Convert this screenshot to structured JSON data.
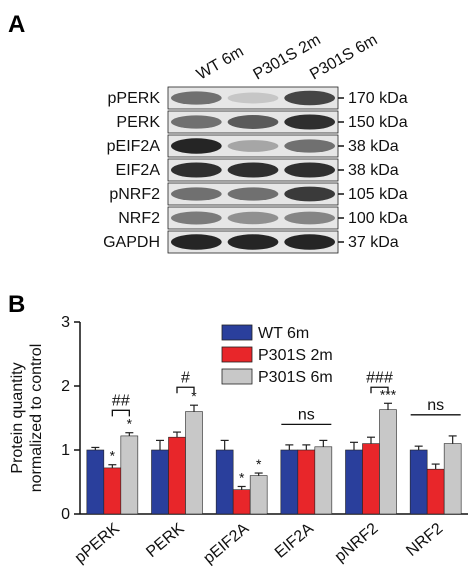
{
  "panel_a": {
    "letter": "A",
    "lanes": [
      "WT 6m",
      "P301S 2m",
      "P301S 6m"
    ],
    "rows": [
      {
        "protein": "pPERK",
        "size": "170 kDa",
        "bands": [
          0.55,
          0.15,
          0.75
        ]
      },
      {
        "protein": "PERK",
        "size": "150 kDa",
        "bands": [
          0.55,
          0.65,
          0.85
        ]
      },
      {
        "protein": "pEIF2A",
        "size": "38 kDa",
        "bands": [
          0.9,
          0.3,
          0.55
        ]
      },
      {
        "protein": "EIF2A",
        "size": "38 kDa",
        "bands": [
          0.85,
          0.85,
          0.85
        ]
      },
      {
        "protein": "pNRF2",
        "size": "105 kDa",
        "bands": [
          0.55,
          0.55,
          0.8
        ]
      },
      {
        "protein": "NRF2",
        "size": "100 kDa",
        "bands": [
          0.5,
          0.4,
          0.45
        ]
      },
      {
        "protein": "GAPDH",
        "size": "37 kDa",
        "bands": [
          0.9,
          0.9,
          0.9
        ]
      }
    ]
  },
  "panel_b": {
    "letter": "B",
    "chart_data": {
      "type": "bar",
      "ylabel_line1": "Protein quantity",
      "ylabel_line2": "normalized to control",
      "ylim": [
        0,
        3
      ],
      "yticks": [
        "0",
        "1",
        "2",
        "3"
      ],
      "categories": [
        "pPERK",
        "PERK",
        "pEIF2A",
        "EIF2A",
        "pNRF2",
        "NRF2"
      ],
      "series": [
        {
          "name": "WT 6m",
          "color": "#2a3f9c",
          "values": [
            1.0,
            1.0,
            1.0,
            1.0,
            1.0,
            1.0
          ],
          "errors": [
            0.04,
            0.15,
            0.15,
            0.08,
            0.12,
            0.06
          ]
        },
        {
          "name": "P301S 2m",
          "color": "#e8262a",
          "values": [
            0.72,
            1.2,
            0.38,
            1.0,
            1.1,
            0.7
          ],
          "errors": [
            0.05,
            0.08,
            0.05,
            0.08,
            0.1,
            0.08
          ]
        },
        {
          "name": "P301S 6m",
          "color": "#c8c8c8",
          "values": [
            1.22,
            1.6,
            0.6,
            1.05,
            1.63,
            1.1
          ],
          "errors": [
            0.05,
            0.1,
            0.04,
            0.1,
            0.1,
            0.12
          ]
        }
      ],
      "bar_marks": [
        {
          "category": 0,
          "series": 1,
          "text": "*"
        },
        {
          "category": 0,
          "series": 2,
          "text": "*"
        },
        {
          "category": 1,
          "series": 2,
          "text": "*"
        },
        {
          "category": 2,
          "series": 1,
          "text": "*"
        },
        {
          "category": 2,
          "series": 2,
          "text": "*"
        },
        {
          "category": 4,
          "series": 2,
          "text": "***"
        }
      ],
      "brackets": [
        {
          "category": 0,
          "text": "##",
          "from_series": 1,
          "to_series": 2,
          "y": 1.62
        },
        {
          "category": 1,
          "text": "#",
          "from_series": 1,
          "to_series": 2,
          "y": 1.98
        },
        {
          "category": 3,
          "text": "ns",
          "from_series": 0,
          "to_series": 2,
          "y": 1.4
        },
        {
          "category": 4,
          "text": "###",
          "from_series": 1,
          "to_series": 2,
          "y": 1.98
        },
        {
          "category": 5,
          "text": "ns",
          "from_series": 0,
          "to_series": 2,
          "y": 1.55
        }
      ],
      "legend_position": "top-right"
    }
  }
}
